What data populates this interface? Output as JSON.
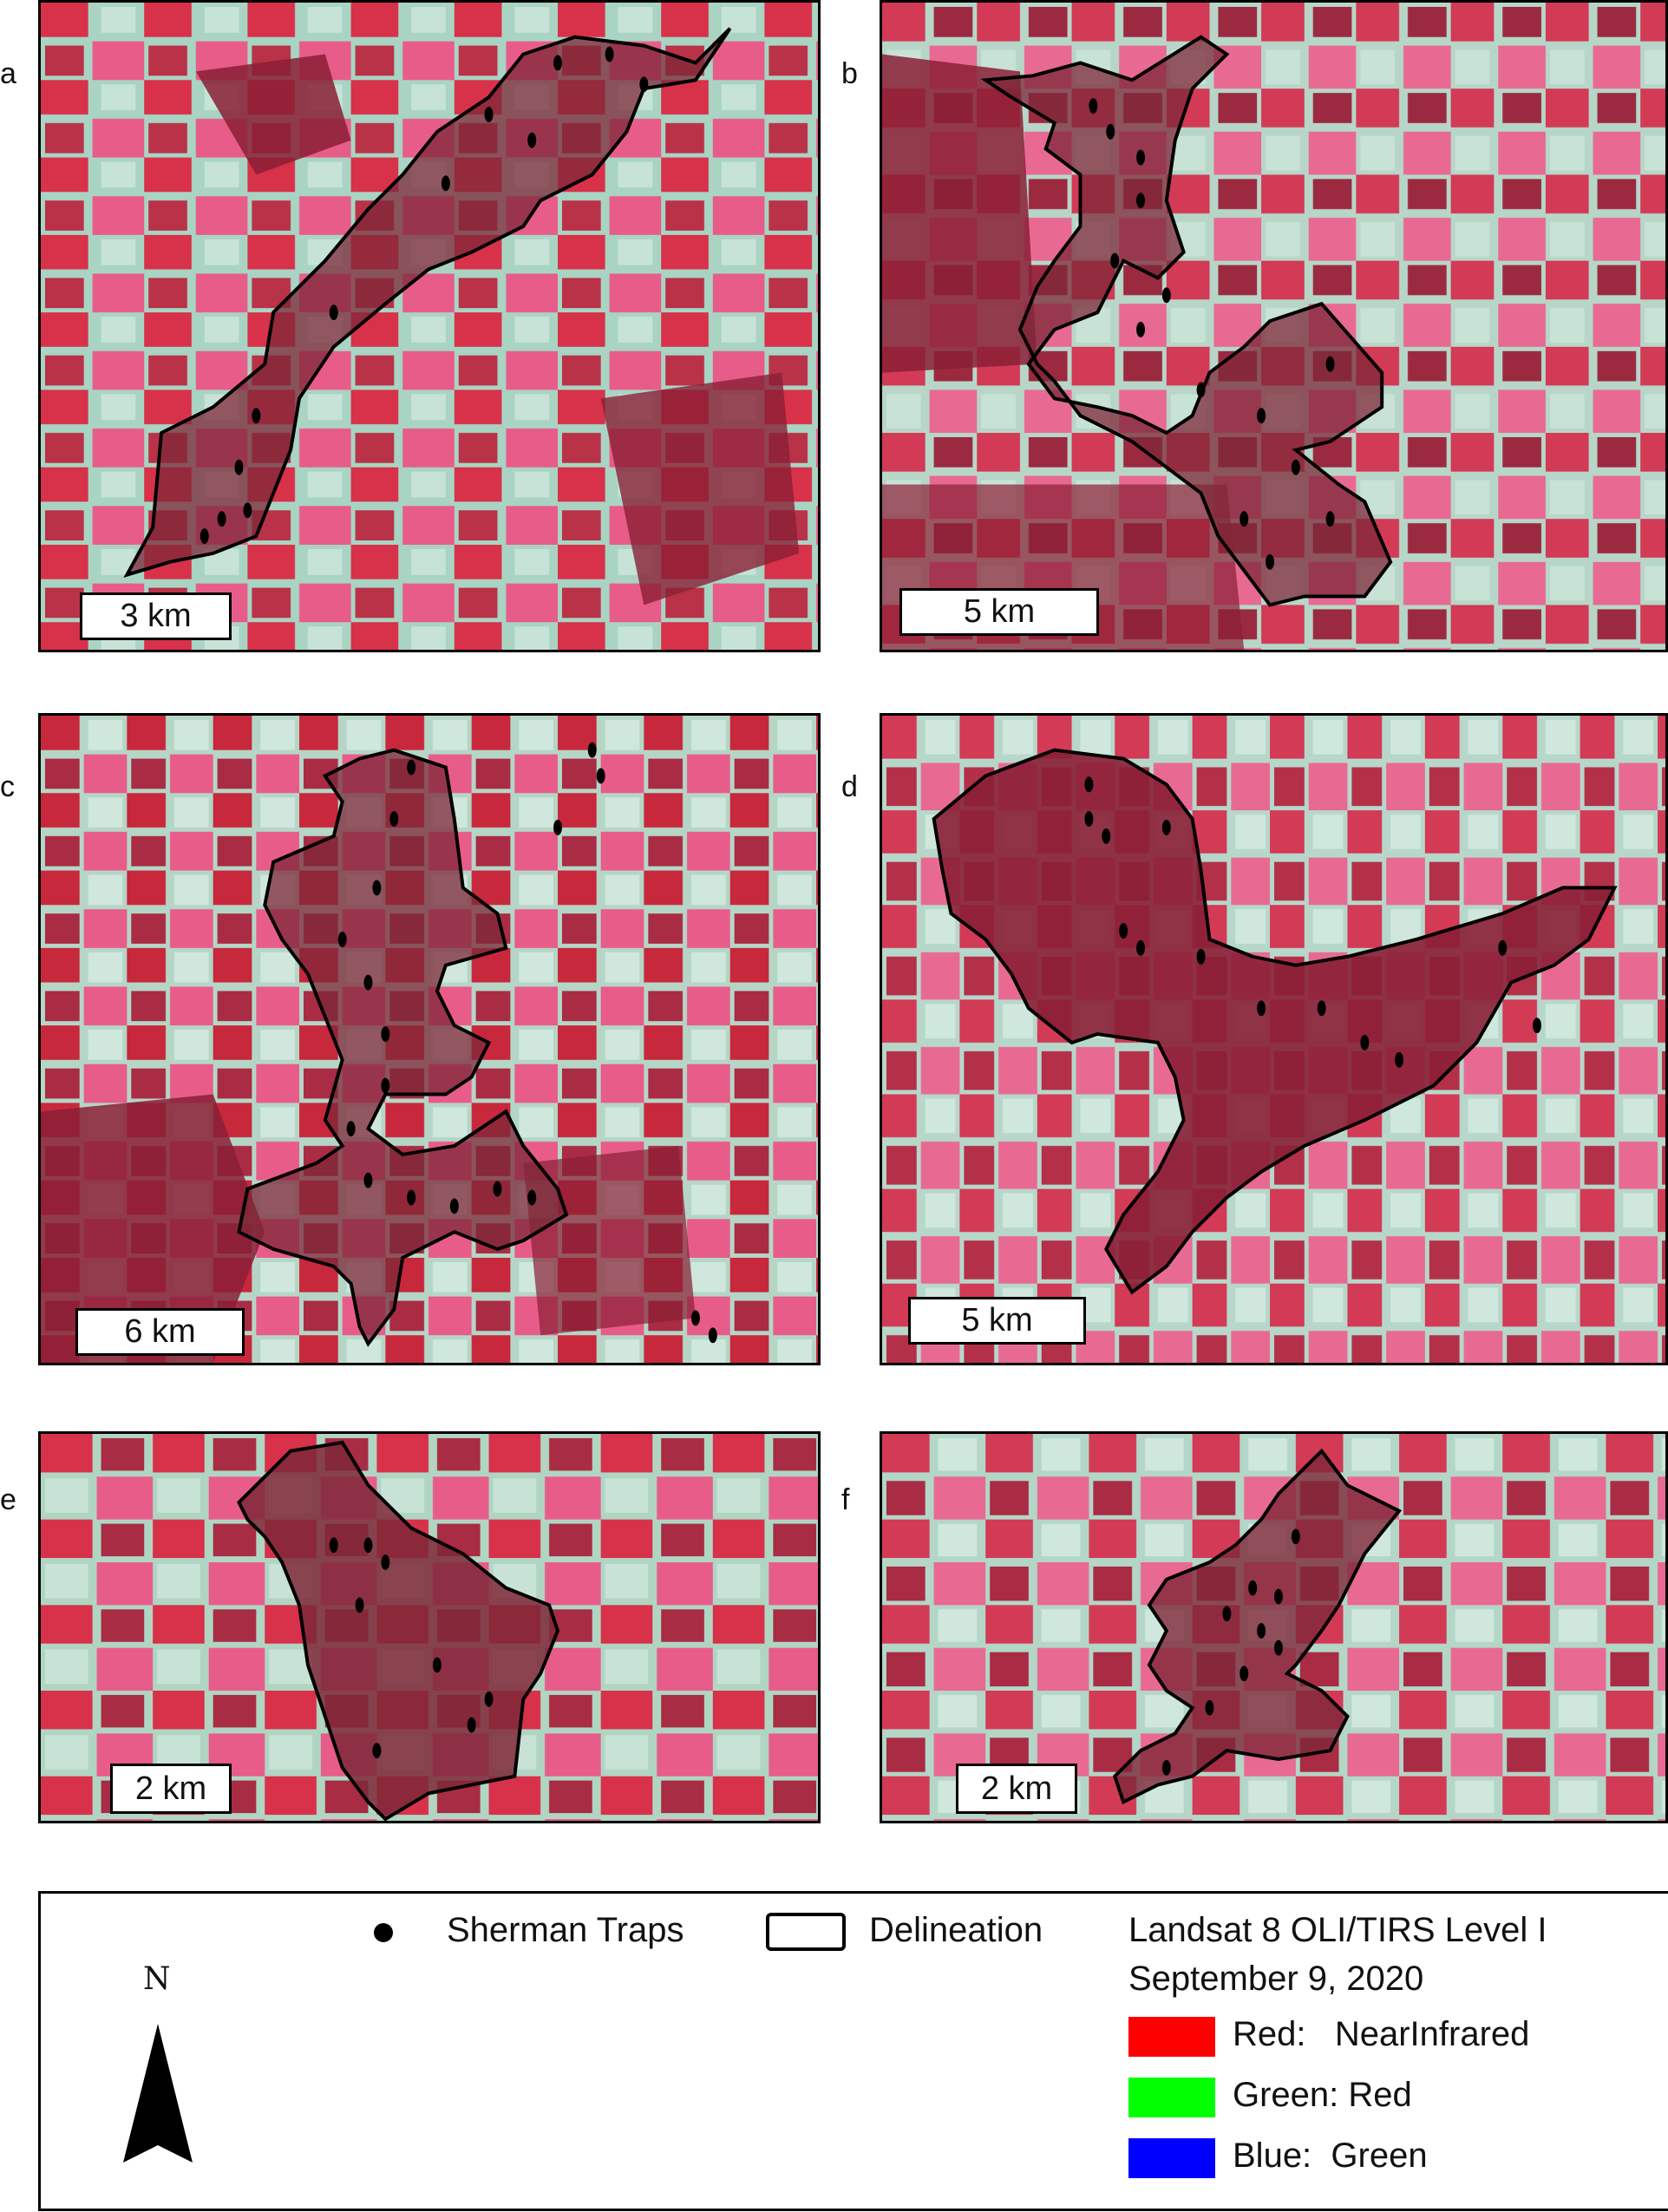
{
  "panels": [
    {
      "letter": "a",
      "scale": "3 km"
    },
    {
      "letter": "b",
      "scale": "5 km"
    },
    {
      "letter": "c",
      "scale": "6 km"
    },
    {
      "letter": "d",
      "scale": "5 km"
    },
    {
      "letter": "e",
      "scale": "2 km"
    },
    {
      "letter": "f",
      "scale": "2 km"
    }
  ],
  "legend": {
    "traps_label": "Sherman Traps",
    "delineation_label": "Delineation",
    "source_line1": "Landsat 8 OLI/TIRS Level I",
    "source_line2": "September 9, 2020",
    "bands": [
      {
        "label": "Red:   NearInfrared",
        "color": "#ff0000"
      },
      {
        "label": "Green: Red",
        "color": "#00ff00"
      },
      {
        "label": "Blue:  Green",
        "color": "#0000ff"
      }
    ],
    "north": "N"
  },
  "colors": {
    "field_red": "#c8283c",
    "field_pink": "#e85c8a",
    "field_pale": "#a9d4c3",
    "forest": "#8a1f35",
    "polygon_fill": "#7e2838"
  }
}
